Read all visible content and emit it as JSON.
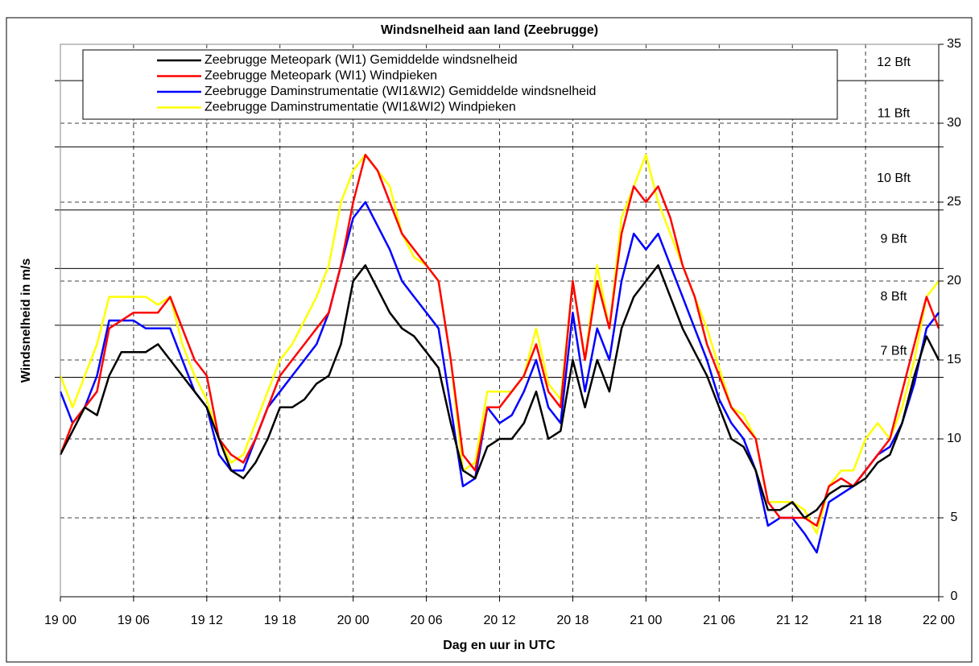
{
  "chart_data": {
    "type": "line",
    "title": "Windsnelheid aan land (Zeebrugge)",
    "xlabel": "Dag en uur in UTC",
    "ylabel": "Windsnelheid in m/s",
    "categories": [
      "19 00",
      null,
      null,
      null,
      null,
      null,
      "19 06",
      null,
      null,
      null,
      null,
      null,
      "19 12",
      null,
      null,
      null,
      null,
      null,
      "19 18",
      null,
      null,
      null,
      null,
      null,
      "20 00",
      null,
      null,
      null,
      null,
      null,
      "20 06",
      null,
      null,
      null,
      null,
      null,
      "20 12",
      null,
      null,
      null,
      null,
      null,
      "20 18",
      null,
      null,
      null,
      null,
      null,
      "21 00",
      null,
      null,
      null,
      null,
      null,
      "21 06",
      null,
      null,
      null,
      null,
      null,
      "21 12",
      null,
      null,
      null,
      null,
      null,
      "21 18",
      null,
      null,
      null,
      null,
      null,
      "22 00"
    ],
    "series": [
      {
        "name": "Zeebrugge Meteopark (WI1) Gemiddelde windsnelheid",
        "color": "#000000",
        "values": [
          9,
          10.5,
          12,
          11.5,
          14,
          15.5,
          15.5,
          15.5,
          16,
          15,
          14,
          13,
          12,
          10,
          8,
          7.5,
          8.5,
          10,
          12,
          12,
          12.5,
          13.5,
          14,
          16,
          20,
          21,
          19.5,
          18,
          17,
          16.5,
          15.5,
          14.5,
          11,
          8,
          7.5,
          9.5,
          10,
          10,
          11,
          13,
          10,
          10.5,
          15,
          12,
          15,
          13,
          17,
          19,
          20,
          21,
          19,
          17,
          15.5,
          14,
          12,
          10,
          9.5,
          8,
          5.5,
          5.5,
          6,
          5,
          5.5,
          6.5,
          7,
          7,
          7.5,
          8.5,
          9,
          11,
          14,
          16.5,
          15
        ]
      },
      {
        "name": "Zeebrugge Meteopark (WI1) Windpieken",
        "color": "#ff0000",
        "values": [
          9,
          11,
          12,
          13,
          17,
          17.5,
          18,
          18,
          18,
          19,
          17,
          15,
          14,
          10,
          9,
          8.5,
          10,
          12,
          14,
          15,
          16,
          17,
          18,
          21,
          25,
          28,
          27,
          25,
          23,
          22,
          21,
          20,
          15,
          9,
          8,
          12,
          12,
          13,
          14,
          16,
          13,
          12,
          20,
          15,
          20,
          17,
          23,
          26,
          25,
          26,
          24,
          21,
          19,
          16,
          14,
          12,
          11,
          10,
          6,
          5,
          5,
          5,
          4.5,
          7,
          7.5,
          7,
          8,
          9,
          10,
          13,
          16,
          19,
          17
        ]
      },
      {
        "name": "Zeebrugge Daminstrumentatie (WI1&WI2) Gemiddelde windsnelheid",
        "color": "#0000ff",
        "values": [
          13,
          11,
          12,
          14,
          17.5,
          17.5,
          17.5,
          17,
          17,
          17,
          15,
          13,
          12,
          9,
          8,
          8,
          10,
          12,
          13,
          14,
          15,
          16,
          18,
          21,
          24,
          25,
          23.5,
          22,
          20,
          19,
          18,
          17,
          12,
          7,
          7.5,
          12,
          11,
          11.5,
          13,
          15,
          12,
          11,
          18,
          13,
          17,
          15,
          20,
          23,
          22,
          23,
          21,
          19,
          17,
          15,
          12.5,
          11,
          10,
          8,
          4.5,
          5,
          5,
          4,
          2.8,
          6,
          6.5,
          7,
          8,
          9,
          9.5,
          11,
          13.5,
          17,
          18
        ]
      },
      {
        "name": "Zeebrugge Daminstrumentatie (WI1&WI2) Windpieken",
        "color": "#ffff00",
        "values": [
          14,
          12,
          14,
          16,
          19,
          19,
          19,
          19,
          18.5,
          19,
          16,
          14,
          12.5,
          10,
          8.5,
          9,
          11,
          13,
          15,
          16,
          17.5,
          19,
          21,
          25,
          27,
          28,
          27,
          26,
          23,
          21.5,
          21,
          20,
          15,
          8,
          8.5,
          13,
          13,
          13,
          14,
          17,
          13.5,
          12.5,
          20,
          15,
          21,
          17,
          24,
          26,
          28,
          25,
          23,
          21,
          19,
          17,
          14.5,
          12,
          11.5,
          10,
          6,
          6,
          6,
          5.5,
          4,
          7,
          8,
          8,
          10,
          11,
          10,
          12,
          15,
          19,
          20
        ]
      }
    ],
    "ylim": [
      0,
      35
    ],
    "yticks": [
      0,
      5,
      10,
      15,
      20,
      25,
      30,
      35
    ],
    "bft_lines": [
      {
        "value": 13.9,
        "label": "7 Bft"
      },
      {
        "value": 17.2,
        "label": "8 Bft"
      },
      {
        "value": 20.8,
        "label": "9 Bft"
      },
      {
        "value": 24.5,
        "label": "10 Bft"
      },
      {
        "value": 28.5,
        "label": "11 Bft"
      },
      {
        "value": 32.7,
        "label": "12 Bft"
      }
    ],
    "grid": true,
    "legend": "top"
  }
}
